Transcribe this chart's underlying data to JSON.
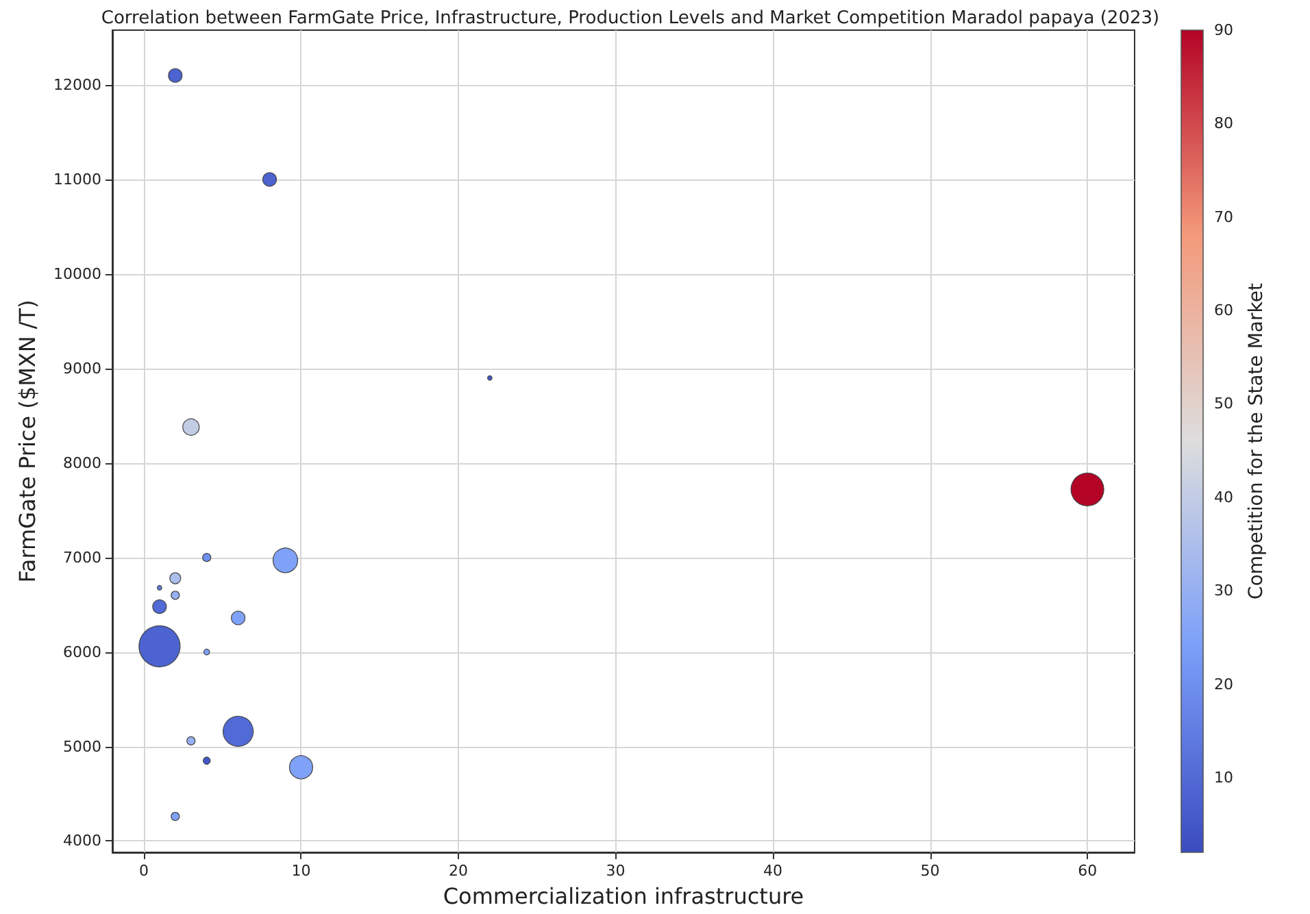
{
  "chart_data": {
    "type": "bubble",
    "title": "Correlation between FarmGate Price, Infrastructure, Production Levels and Market Competition Maradol papaya (2023)",
    "xlabel": "Commercialization infrastructure",
    "ylabel": "FarmGate Price ($MXN /T)",
    "clabel": "Competition for the State Market",
    "x": [
      2,
      8,
      22,
      60,
      3,
      4,
      9,
      2,
      1,
      2,
      1,
      6,
      1,
      4,
      6,
      3,
      4,
      10,
      2
    ],
    "values": [
      12100,
      11000,
      8900,
      7720,
      8380,
      7000,
      6970,
      6780,
      6680,
      6600,
      6480,
      6360,
      6060,
      6000,
      5160,
      5060,
      4850,
      4780,
      4260
    ],
    "sizes": [
      0.11,
      0.11,
      0.012,
      0.64,
      0.16,
      0.04,
      0.36,
      0.07,
      0.012,
      0.04,
      0.11,
      0.11,
      1,
      0.02,
      0.54,
      0.04,
      0.03,
      0.32,
      0.04
    ],
    "cvalues": [
      8,
      8,
      5,
      90,
      40,
      20,
      25,
      35,
      15,
      30,
      10,
      25,
      8,
      25,
      10,
      30,
      5,
      25,
      25
    ],
    "clim": [
      2,
      90
    ],
    "cticks": [
      10,
      20,
      30,
      40,
      50,
      60,
      70,
      80,
      90
    ],
    "xlim": [
      -2,
      63
    ],
    "xticks": [
      0,
      10,
      20,
      30,
      40,
      50,
      60
    ],
    "ylim": [
      3880,
      12580
    ],
    "yticks": [
      4000,
      5000,
      6000,
      7000,
      8000,
      9000,
      10000,
      11000,
      12000
    ],
    "grid": true,
    "marker": "circle"
  }
}
